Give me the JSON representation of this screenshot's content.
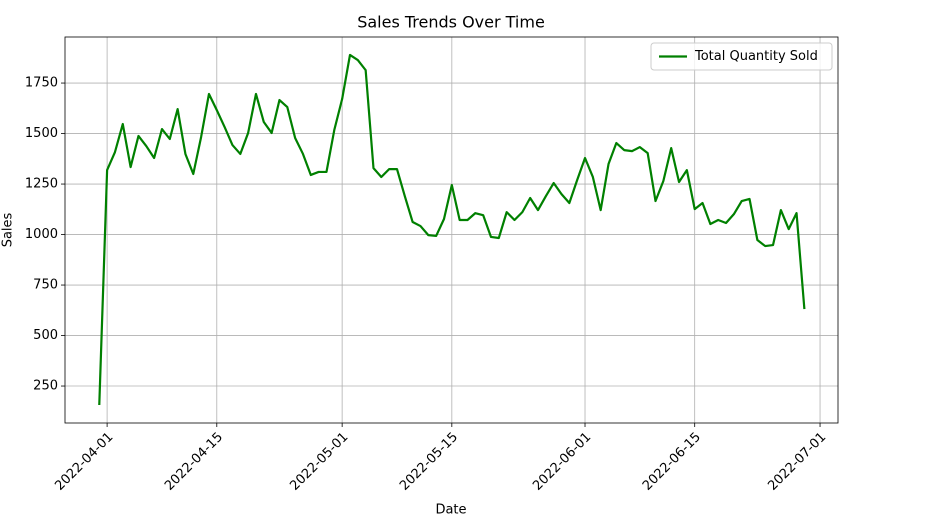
{
  "chart_data": {
    "type": "line",
    "title": "Sales Trends Over Time",
    "x_label": "Date",
    "y_label": "Sales",
    "x": [
      "2022-03-31",
      "2022-04-01",
      "2022-04-02",
      "2022-04-03",
      "2022-04-04",
      "2022-04-05",
      "2022-04-06",
      "2022-04-07",
      "2022-04-08",
      "2022-04-09",
      "2022-04-10",
      "2022-04-11",
      "2022-04-12",
      "2022-04-13",
      "2022-04-14",
      "2022-04-15",
      "2022-04-16",
      "2022-04-17",
      "2022-04-18",
      "2022-04-19",
      "2022-04-20",
      "2022-04-21",
      "2022-04-22",
      "2022-04-23",
      "2022-04-24",
      "2022-04-25",
      "2022-04-26",
      "2022-04-27",
      "2022-04-28",
      "2022-04-29",
      "2022-04-30",
      "2022-05-01",
      "2022-05-02",
      "2022-05-03",
      "2022-05-04",
      "2022-05-05",
      "2022-05-06",
      "2022-05-07",
      "2022-05-08",
      "2022-05-09",
      "2022-05-10",
      "2022-05-11",
      "2022-05-12",
      "2022-05-13",
      "2022-05-14",
      "2022-05-15",
      "2022-05-16",
      "2022-05-17",
      "2022-05-18",
      "2022-05-19",
      "2022-05-20",
      "2022-05-21",
      "2022-05-22",
      "2022-05-23",
      "2022-05-24",
      "2022-05-25",
      "2022-05-26",
      "2022-05-27",
      "2022-05-28",
      "2022-05-29",
      "2022-05-30",
      "2022-05-31",
      "2022-06-01",
      "2022-06-02",
      "2022-06-03",
      "2022-06-04",
      "2022-06-05",
      "2022-06-06",
      "2022-06-07",
      "2022-06-08",
      "2022-06-09",
      "2022-06-10",
      "2022-06-11",
      "2022-06-12",
      "2022-06-13",
      "2022-06-14",
      "2022-06-15",
      "2022-06-16",
      "2022-06-17",
      "2022-06-18",
      "2022-06-19",
      "2022-06-20",
      "2022-06-21",
      "2022-06-22",
      "2022-06-23",
      "2022-06-24",
      "2022-06-25",
      "2022-06-26",
      "2022-06-27",
      "2022-06-28",
      "2022-06-29"
    ],
    "series": [
      {
        "name": "Total Quantity Sold",
        "color": "#008000",
        "values": [
          156,
          1319,
          1408,
          1547,
          1334,
          1488,
          1438,
          1379,
          1522,
          1473,
          1621,
          1398,
          1300,
          1483,
          1696,
          1616,
          1532,
          1443,
          1399,
          1503,
          1696,
          1557,
          1503,
          1666,
          1631,
          1478,
          1399,
          1295,
          1310,
          1310,
          1518,
          1671,
          1889,
          1864,
          1814,
          1329,
          1285,
          1324,
          1324,
          1190,
          1062,
          1042,
          997,
          993,
          1077,
          1245,
          1072,
          1072,
          1106,
          1096,
          988,
          983,
          1111,
          1072,
          1111,
          1181,
          1121,
          1190,
          1255,
          1200,
          1156,
          1270,
          1379,
          1285,
          1121,
          1349,
          1453,
          1418,
          1413,
          1433,
          1403,
          1166,
          1265,
          1428,
          1260,
          1319,
          1126,
          1156,
          1052,
          1072,
          1057,
          1101,
          1166,
          1176,
          973,
          943,
          948,
          1121,
          1027,
          1106,
          631
        ]
      }
    ],
    "xlim": [
      "2022-03-26T15:00:00Z",
      "2022-07-03T07:00:00Z"
    ],
    "xticks": [
      "2022-04-01",
      "2022-04-15",
      "2022-05-01",
      "2022-05-15",
      "2022-06-01",
      "2022-06-15",
      "2022-07-01"
    ],
    "ylim": [
      67,
      1978
    ],
    "yticks": [
      250,
      500,
      750,
      1000,
      1250,
      1500,
      1750
    ],
    "grid": true,
    "legend": "upper right"
  }
}
